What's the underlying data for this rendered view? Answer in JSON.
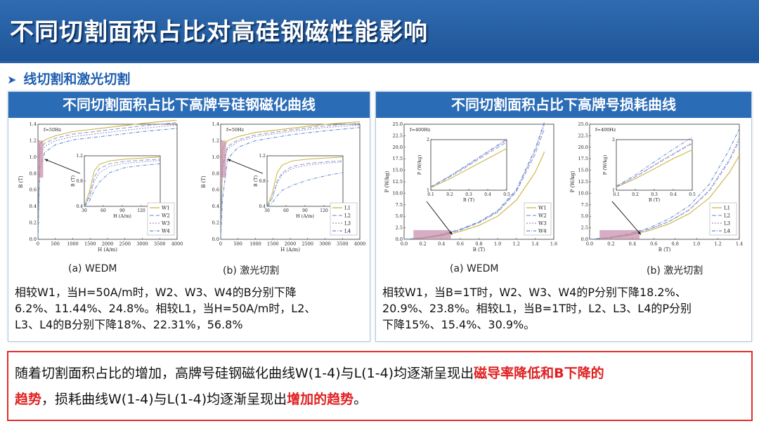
{
  "slide": {
    "title": "不同切割面积占比对高硅钢磁性能影响",
    "section": "线切割和激光切割"
  },
  "left_panel": {
    "header": "不同切割面积占比下高牌号硅钢磁化曲线",
    "caption_a": "(a) WEDM",
    "caption_b": "(b) 激光切割",
    "text_lines": [
      "相较W1，当H=50A/m时，W2、W3、W4的B分别下降",
      "6.2%、11.44%、24.8%。相较L1，当H=50A/m时，L2、",
      "L3、L4的B分别下降18%、22.31%，56.8%"
    ]
  },
  "right_panel": {
    "header": "不同切割面积占比下高牌号损耗曲线",
    "caption_a": "(a) WEDM",
    "caption_b": "(b) 激光切割",
    "text_lines": [
      "相较W1，当B=1T时，W2、W3、W4的P分别下降18.2%、",
      "20.9%、23.8%。相较L1，当B=1T时，L2、L3、L4的P分别",
      "下降15%、15.4%、30.9%。"
    ]
  },
  "conclusion": {
    "line1_normal": "随着切割面积占比的增加，高牌号硅钢磁化曲线W(1-4)与L(1-4)均逐渐呈现出",
    "line1_highlight": "磁导率降低和B下降的",
    "line2_highlight_a": "趋势",
    "line2_normal": "，损耗曲线W(1-4)与L(1-4)均逐渐呈现出",
    "line2_highlight_b": "增加的趋势",
    "line2_end": "。"
  },
  "colors": {
    "banner": "#2b6cb7",
    "accent_red": "#e42c2c",
    "highlight_box": "#c48aa8"
  },
  "chart_data": [
    {
      "type": "line",
      "id": "mag_wedm",
      "annotation": "f=50Hz",
      "xlabel": "H (A/m)",
      "ylabel": "B (T)",
      "xlim": [
        0,
        4000
      ],
      "ylim": [
        0,
        1.4
      ],
      "xticks": [
        "0",
        "500",
        "1000",
        "1500",
        "2000",
        "2500",
        "3000",
        "3500",
        "4000"
      ],
      "yticks": [
        "0.0",
        "0.2",
        "0.4",
        "0.6",
        "0.8",
        "1.0",
        "1.2",
        "1.4"
      ],
      "x": [
        0,
        50,
        200,
        500,
        1000,
        2000,
        3000,
        4000
      ],
      "series": [
        {
          "name": "W1",
          "values": [
            0,
            1.16,
            1.21,
            1.26,
            1.31,
            1.36,
            1.41,
            1.45
          ]
        },
        {
          "name": "W2",
          "values": [
            0,
            1.09,
            1.17,
            1.23,
            1.28,
            1.33,
            1.38,
            1.42
          ]
        },
        {
          "name": "W3",
          "values": [
            0,
            1.03,
            1.13,
            1.2,
            1.25,
            1.3,
            1.35,
            1.39
          ]
        },
        {
          "name": "W4",
          "values": [
            0,
            0.87,
            1.06,
            1.15,
            1.21,
            1.26,
            1.31,
            1.35
          ]
        }
      ],
      "inset": {
        "xlabel": "H (A/m)",
        "ylabel": "B (T)",
        "xlim": [
          0,
          150
        ],
        "ylim": [
          0,
          1.2
        ],
        "xticks": [
          "30",
          "60",
          "90",
          "120",
          "150"
        ],
        "yticks": [
          "0.4",
          "0.8",
          "1.2"
        ],
        "x": [
          0,
          10,
          20,
          30,
          50,
          80,
          120,
          150
        ],
        "series": [
          {
            "name": "W1",
            "values": [
              0,
              0.35,
              0.85,
              1.0,
              1.08,
              1.12,
              1.15,
              1.17
            ]
          },
          {
            "name": "W2",
            "values": [
              0,
              0.25,
              0.7,
              0.9,
              1.01,
              1.07,
              1.1,
              1.12
            ]
          },
          {
            "name": "W3",
            "values": [
              0,
              0.2,
              0.6,
              0.8,
              0.95,
              1.02,
              1.06,
              1.09
            ]
          },
          {
            "name": "W4",
            "values": [
              0,
              0.12,
              0.4,
              0.58,
              0.8,
              0.92,
              0.98,
              1.01
            ]
          }
        ]
      }
    },
    {
      "type": "line",
      "id": "mag_laser",
      "annotation": "f=50Hz",
      "xlabel": "H (A/m)",
      "ylabel": "B (T)",
      "xlim": [
        0,
        4000
      ],
      "ylim": [
        0,
        1.4
      ],
      "xticks": [
        "0",
        "500",
        "1000",
        "1500",
        "2000",
        "2500",
        "3000",
        "3500",
        "4000"
      ],
      "yticks": [
        "0.0",
        "0.2",
        "0.4",
        "0.6",
        "0.8",
        "1.0",
        "1.2",
        "1.4"
      ],
      "x": [
        0,
        50,
        200,
        500,
        1000,
        2000,
        3000,
        4000
      ],
      "series": [
        {
          "name": "L1",
          "values": [
            0,
            1.1,
            1.2,
            1.25,
            1.3,
            1.35,
            1.4,
            1.43
          ]
        },
        {
          "name": "L2",
          "values": [
            0,
            0.9,
            1.13,
            1.21,
            1.27,
            1.33,
            1.38,
            1.41
          ]
        },
        {
          "name": "L3",
          "values": [
            0,
            0.86,
            1.1,
            1.19,
            1.25,
            1.31,
            1.36,
            1.39
          ]
        },
        {
          "name": "L4",
          "values": [
            0,
            0.48,
            0.98,
            1.12,
            1.2,
            1.27,
            1.32,
            1.36
          ]
        }
      ],
      "inset": {
        "xlabel": "H (A/m)",
        "ylabel": "B (T)",
        "xlim": [
          0,
          150
        ],
        "ylim": [
          0,
          1.2
        ],
        "xticks": [
          "30",
          "60",
          "90",
          "120",
          "150"
        ],
        "yticks": [
          "0.4",
          "0.8",
          "1.2"
        ],
        "x": [
          0,
          10,
          20,
          30,
          50,
          80,
          120,
          150
        ],
        "series": [
          {
            "name": "L1",
            "values": [
              0,
              0.3,
              0.8,
              0.98,
              1.08,
              1.12,
              1.15,
              1.17
            ]
          },
          {
            "name": "L2",
            "values": [
              0,
              0.2,
              0.6,
              0.8,
              0.95,
              1.02,
              1.06,
              1.08
            ]
          },
          {
            "name": "L3",
            "values": [
              0,
              0.18,
              0.55,
              0.76,
              0.9,
              0.98,
              1.03,
              1.05
            ]
          },
          {
            "name": "L4",
            "values": [
              0,
              0.08,
              0.25,
              0.38,
              0.5,
              0.62,
              0.74,
              0.8
            ]
          }
        ]
      }
    },
    {
      "type": "line",
      "id": "loss_wedm",
      "annotation": "f=400Hz",
      "xlabel": "B (T)",
      "ylabel": "P (W/kg)",
      "xlim": [
        0,
        1.6
      ],
      "ylim": [
        0,
        25
      ],
      "xticks": [
        "0.0",
        "0.2",
        "0.4",
        "0.6",
        "0.8",
        "1.0",
        "1.2",
        "1.4",
        "1.6"
      ],
      "yticks": [
        "0.0",
        "2.5",
        "5.0",
        "7.5",
        "10.0",
        "12.5",
        "15.0",
        "17.5",
        "20.0",
        "22.5",
        "25.0"
      ],
      "x": [
        0,
        0.2,
        0.4,
        0.6,
        0.8,
        1.0,
        1.2,
        1.4,
        1.5
      ],
      "series": [
        {
          "name": "W1",
          "values": [
            0,
            0.25,
            0.8,
            1.7,
            3.0,
            5.0,
            8.5,
            14.5,
            19.0
          ]
        },
        {
          "name": "W2",
          "values": [
            0,
            0.3,
            0.95,
            2.0,
            3.6,
            5.9,
            10.3,
            18.5,
            24.0
          ]
        },
        {
          "name": "W3",
          "values": [
            0,
            0.32,
            1.0,
            2.1,
            3.7,
            6.05,
            10.6,
            19.2,
            25.0
          ]
        },
        {
          "name": "W4",
          "values": [
            0,
            0.33,
            1.05,
            2.2,
            3.8,
            6.2,
            10.8,
            19.6,
            25.5
          ]
        }
      ],
      "inset": {
        "xlabel": "B (T)",
        "ylabel": "P (W/kg)",
        "xlim": [
          0.1,
          0.5
        ],
        "ylim": [
          0,
          2
        ],
        "xticks": [
          "0.1",
          "0.2",
          "0.3",
          "0.4",
          "0.5"
        ],
        "yticks": [
          "1",
          "2"
        ],
        "x": [
          0.1,
          0.2,
          0.3,
          0.4,
          0.5
        ],
        "series": [
          {
            "name": "W1",
            "values": [
              0.1,
              0.45,
              0.85,
              1.25,
              1.65
            ]
          },
          {
            "name": "W2",
            "values": [
              0.12,
              0.52,
              0.98,
              1.45,
              1.9
            ]
          },
          {
            "name": "W3",
            "values": [
              0.13,
              0.55,
              1.02,
              1.5,
              1.97
            ]
          },
          {
            "name": "W4",
            "values": [
              0.13,
              0.56,
              1.04,
              1.53,
              2.02
            ]
          }
        ]
      }
    },
    {
      "type": "line",
      "id": "loss_laser",
      "annotation": "f=400Hz",
      "xlabel": "B (T)",
      "ylabel": "P (W/kg)",
      "xlim": [
        0,
        1.5
      ],
      "ylim": [
        0,
        25
      ],
      "xticks": [
        "0.0",
        "0.2",
        "0.4",
        "0.6",
        "0.8",
        "1.0",
        "1.2",
        "1.4"
      ],
      "yticks": [
        "0.0",
        "2.5",
        "5.0",
        "7.5",
        "10.0",
        "12.5",
        "15.0",
        "17.5",
        "20.0",
        "22.5",
        "25.0"
      ],
      "x": [
        0,
        0.2,
        0.4,
        0.6,
        0.8,
        1.0,
        1.2,
        1.4,
        1.5
      ],
      "series": [
        {
          "name": "L1",
          "values": [
            0,
            0.3,
            0.9,
            1.9,
            3.4,
            5.6,
            9.0,
            14.5,
            18.2
          ]
        },
        {
          "name": "L2",
          "values": [
            0,
            0.35,
            1.05,
            2.2,
            3.9,
            6.4,
            10.5,
            17.0,
            21.5
          ]
        },
        {
          "name": "L3",
          "values": [
            0,
            0.36,
            1.07,
            2.23,
            3.95,
            6.5,
            10.7,
            17.4,
            22.0
          ]
        },
        {
          "name": "L4",
          "values": [
            0,
            0.4,
            1.2,
            2.5,
            4.5,
            7.3,
            12.0,
            19.5,
            24.0
          ]
        }
      ],
      "inset": {
        "xlabel": "B (T)",
        "ylabel": "P (W/kg)",
        "xlim": [
          0.1,
          0.5
        ],
        "ylim": [
          0,
          2
        ],
        "xticks": [
          "0.1",
          "0.2",
          "0.3",
          "0.4",
          "0.5"
        ],
        "yticks": [
          "1",
          "2"
        ],
        "x": [
          0.1,
          0.2,
          0.3,
          0.4,
          0.5
        ],
        "series": [
          {
            "name": "L1",
            "values": [
              0.12,
              0.45,
              0.85,
              1.25,
              1.6
            ]
          },
          {
            "name": "L2",
            "values": [
              0.14,
              0.52,
              0.98,
              1.42,
              1.85
            ]
          },
          {
            "name": "L3",
            "values": [
              0.14,
              0.53,
              1.0,
              1.45,
              1.88
            ]
          },
          {
            "name": "L4",
            "values": [
              0.16,
              0.6,
              1.12,
              1.62,
              2.1
            ]
          }
        ]
      }
    }
  ]
}
